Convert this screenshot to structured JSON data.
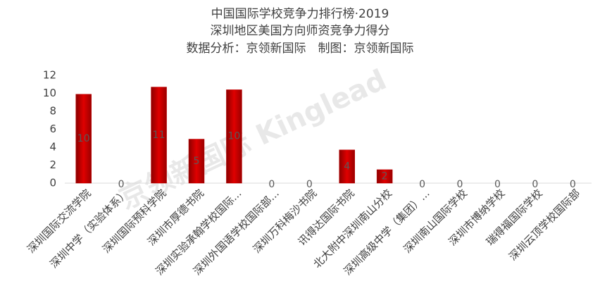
{
  "chart_data": {
    "type": "bar",
    "title": "中国国际学校竞争力排行榜·2019",
    "subtitle": "深圳地区美国方向师资竞争力得分",
    "credit": "数据分析：京领新国际　制图：京领新国际",
    "watermark": "京领新国际 Kinglead",
    "categories": [
      "深圳国际交流学院",
      "深圳中学（实验体系）",
      "深圳国际预科学院",
      "深圳市厚德书院",
      "深圳实验承翰学校国际...",
      "深圳外国语学校国际部...",
      "深圳万科梅沙书院",
      "讯得达国际书院",
      "北大附中深圳南山分校",
      "深圳高级中学（集团）...",
      "深圳南山国际学校",
      "深圳市博纳学校",
      "瑞得福国际学校",
      "深圳云顶学校国际部"
    ],
    "values": [
      9.9,
      0,
      10.7,
      4.9,
      10.4,
      0,
      0,
      3.7,
      1.5,
      0,
      0,
      0,
      0,
      0
    ],
    "value_labels": [
      "10",
      "0",
      "11",
      "5",
      "10",
      "0",
      "0",
      "4",
      "2",
      "0",
      "0",
      "0",
      "0",
      "0"
    ],
    "color": "#c00000",
    "ylim": [
      0,
      12
    ],
    "yticks": [
      0,
      2,
      4,
      6,
      8,
      10,
      12
    ],
    "grid": false
  }
}
